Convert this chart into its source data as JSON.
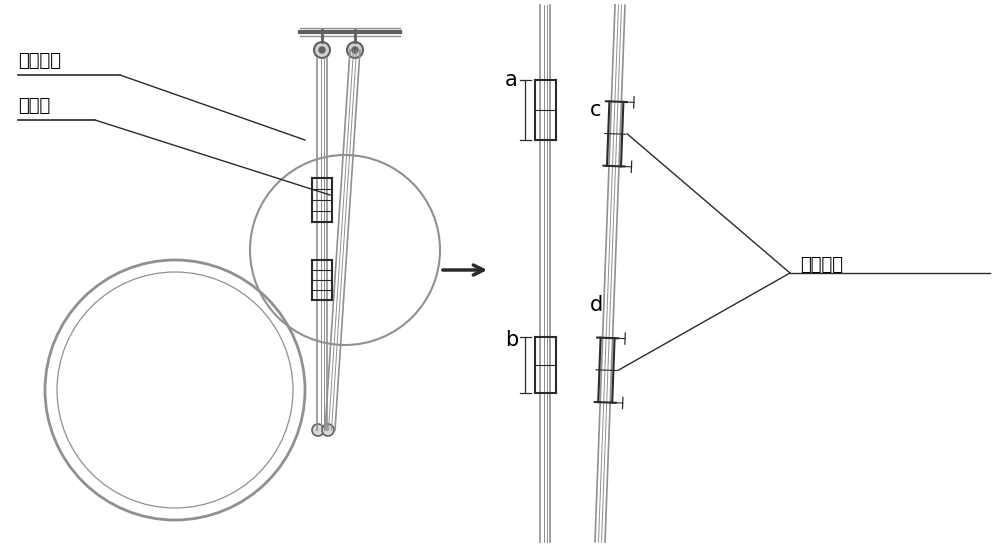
{
  "bg_color": "#ffffff",
  "line_color": "#909090",
  "dark_line": "#2a2a2a",
  "mid_line": "#606060",
  "text_color": "#000000",
  "label_垂直拉杆": "垂直拉杆",
  "label_斜拉杆": "斜拉杆",
  "label_调节螺杆": "调节螺杆",
  "label_a": "a",
  "label_b": "b",
  "label_c": "c",
  "label_d": "d",
  "font_size_labels": 13,
  "font_size_abcd": 15
}
